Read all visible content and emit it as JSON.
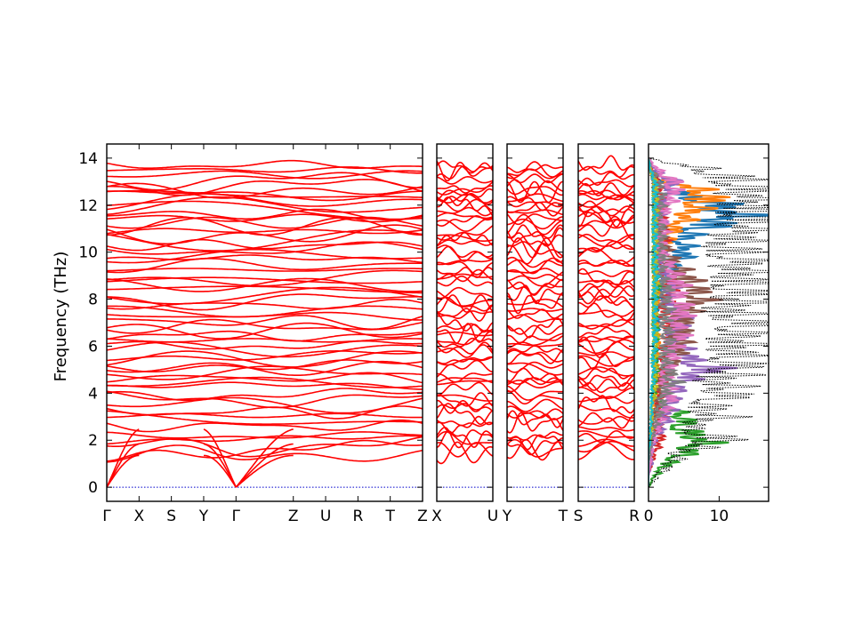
{
  "chart_data": {
    "type": "line",
    "title": "",
    "ylabel": "Frequency (THz)",
    "ylim": [
      -0.6,
      14.6
    ],
    "yticks": [
      0,
      2,
      4,
      6,
      8,
      10,
      12,
      14
    ],
    "grid": false,
    "band_color": "#ff0000",
    "zero_line_color": "#0000cc",
    "panels": [
      {
        "id": "main",
        "segments": [
          {
            "from": "Γ",
            "to": "X",
            "len": 0.62
          },
          {
            "from": "X",
            "to": "S",
            "len": 0.62
          },
          {
            "from": "S",
            "to": "Y",
            "len": 0.62
          },
          {
            "from": "Y",
            "to": "Γ",
            "len": 0.62
          },
          {
            "from": "Γ",
            "to": "Z",
            "len": 1.1
          },
          {
            "from": "Z",
            "to": "U",
            "len": 0.62
          },
          {
            "from": "U",
            "to": "R",
            "len": 0.62
          },
          {
            "from": "R",
            "to": "T",
            "len": 0.62
          },
          {
            "from": "T",
            "to": "Z",
            "len": 0.62
          }
        ]
      },
      {
        "id": "xu",
        "segments": [
          {
            "from": "X",
            "to": "U",
            "len": 1
          }
        ]
      },
      {
        "id": "yt",
        "segments": [
          {
            "from": "Y",
            "to": "T",
            "len": 1
          }
        ]
      },
      {
        "id": "sr",
        "segments": [
          {
            "from": "S",
            "to": "R",
            "len": 1
          }
        ]
      }
    ],
    "tick_labels": {
      "main": [
        "Γ",
        "X",
        "S",
        "Y",
        "Γ",
        "Z",
        "U",
        "R",
        "T",
        "Z"
      ],
      "xu": [
        "X",
        "U"
      ],
      "yt": [
        "Y",
        "T"
      ],
      "sr": [
        "S",
        "R"
      ]
    },
    "acoustic_zero_points": [
      "Γ"
    ],
    "optical_band_centers": [
      1.45,
      1.7,
      1.85,
      2.0,
      2.2,
      2.6,
      2.9,
      3.05,
      3.2,
      3.55,
      3.75,
      3.95,
      4.25,
      4.45,
      4.65,
      4.85,
      5.05,
      5.25,
      5.45,
      5.65,
      5.85,
      6.05,
      6.25,
      6.45,
      6.65,
      6.85,
      7.05,
      7.3,
      7.5,
      7.75,
      7.95,
      8.15,
      8.4,
      8.6,
      8.8,
      9.0,
      9.25,
      9.45,
      9.65,
      9.85,
      10.1,
      10.3,
      10.5,
      10.7,
      10.9,
      11.1,
      11.25,
      11.45,
      11.6,
      11.8,
      11.95,
      12.15,
      12.3,
      12.45,
      12.6,
      12.8,
      13.05,
      13.3,
      13.5,
      13.7
    ],
    "dos": {
      "xlim": [
        0,
        17
      ],
      "xticks": [
        0,
        10
      ],
      "total_color": "#000000",
      "total_style": "dotted",
      "frequency_grid": [
        0,
        0.5,
        1,
        1.5,
        2,
        2.5,
        3,
        3.5,
        4,
        4.5,
        5,
        5.5,
        6,
        6.5,
        7,
        7.5,
        8,
        8.5,
        9,
        9.5,
        10,
        10.5,
        11,
        11.5,
        12,
        12.5,
        13,
        13.5,
        14
      ],
      "total": [
        0,
        1.5,
        3.5,
        5,
        12,
        6,
        11,
        9,
        13,
        11,
        14,
        13,
        15,
        14,
        16,
        13,
        15,
        14,
        16,
        15,
        13,
        14,
        16,
        17,
        17,
        16.5,
        15,
        9,
        0
      ],
      "partials": [
        {
          "color": "#1f77b4",
          "values": [
            0,
            0,
            0,
            0,
            0.5,
            0.3,
            0.5,
            0.5,
            1,
            0.8,
            1,
            1,
            1.2,
            1,
            1.5,
            1.2,
            2,
            2,
            2.5,
            4,
            6,
            5,
            8,
            14,
            11,
            5,
            2,
            0.5,
            0
          ]
        },
        {
          "color": "#ff7f0e",
          "values": [
            0,
            0,
            0,
            0,
            0.5,
            0.5,
            0.8,
            1,
            1.5,
            1.5,
            1.2,
            1,
            1.5,
            1.2,
            1,
            1,
            1.5,
            1.2,
            1,
            1.5,
            2,
            3,
            4,
            6,
            8,
            10,
            3,
            0.5,
            0
          ]
        },
        {
          "color": "#2ca02c",
          "values": [
            0,
            1,
            3,
            6,
            9,
            5,
            6,
            2,
            1,
            1,
            1.5,
            1,
            1,
            1.2,
            1,
            1,
            1,
            1.5,
            1,
            1,
            1,
            1,
            1,
            1,
            1,
            1,
            1,
            0.3,
            0
          ]
        },
        {
          "color": "#d62728",
          "values": [
            0,
            0,
            0.5,
            1,
            2,
            1.5,
            2,
            1.5,
            2,
            2.5,
            3,
            2.5,
            3,
            4,
            3,
            2.5,
            3,
            3.5,
            3,
            2,
            2,
            2.5,
            2,
            2,
            2,
            2,
            1.5,
            0.5,
            0
          ]
        },
        {
          "color": "#9467bd",
          "values": [
            0,
            0,
            0.5,
            0.5,
            1,
            2,
            3,
            3.5,
            4,
            5,
            10,
            6,
            5,
            4,
            5,
            5,
            3,
            4,
            3,
            2,
            2,
            1.5,
            2,
            2,
            2,
            3,
            4,
            1,
            0
          ]
        },
        {
          "color": "#8c564b",
          "values": [
            0,
            0,
            0,
            0,
            0.3,
            0.5,
            1,
            1.5,
            2,
            2,
            3,
            4,
            5,
            5,
            5,
            6,
            8,
            7,
            6,
            4,
            3,
            2,
            2,
            1.5,
            1,
            1,
            1,
            0.3,
            0
          ]
        },
        {
          "color": "#e377c2",
          "values": [
            0,
            0,
            0.3,
            0.5,
            0.8,
            1.5,
            2,
            3,
            3.5,
            2.5,
            3,
            3.5,
            4,
            5,
            4,
            6,
            4,
            5,
            4,
            3,
            2,
            2,
            2.5,
            2,
            3,
            4,
            4,
            1.5,
            0
          ]
        },
        {
          "color": "#7f7f7f",
          "values": [
            0,
            0,
            0,
            0.3,
            0.5,
            1,
            1.5,
            2,
            2.5,
            4,
            3,
            2.5,
            3,
            3,
            2.5,
            3,
            2.5,
            3,
            2,
            2,
            2,
            2,
            2,
            1.5,
            2,
            2,
            1.5,
            0.5,
            0
          ]
        },
        {
          "color": "#bcbd22",
          "values": [
            0,
            0,
            0,
            0,
            0.3,
            0.5,
            0.5,
            0.5,
            1,
            1,
            1,
            1,
            1,
            1.2,
            1,
            1,
            1,
            1.2,
            1,
            1,
            1,
            1,
            1,
            1,
            1.2,
            1,
            1,
            0.3,
            0
          ]
        },
        {
          "color": "#17becf",
          "values": [
            0,
            0,
            0,
            0,
            0.3,
            0.3,
            0.5,
            0.5,
            0.5,
            0.8,
            0.8,
            0.8,
            1,
            1,
            1,
            1,
            1,
            1,
            1.2,
            1,
            1,
            1,
            1,
            1,
            1,
            1,
            1,
            0.3,
            0
          ]
        }
      ]
    }
  }
}
